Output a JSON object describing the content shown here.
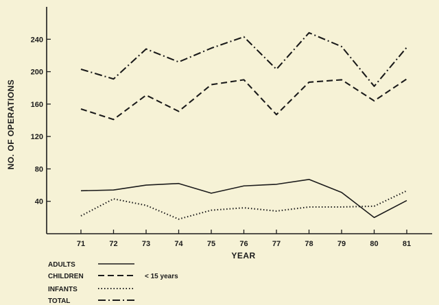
{
  "chart_data": {
    "type": "line",
    "xlabel": "YEAR",
    "ylabel": "NO. OF OPERATIONS",
    "x": [
      "71",
      "72",
      "73",
      "74",
      "75",
      "76",
      "77",
      "78",
      "79",
      "80",
      "81"
    ],
    "xlim": [
      70.3,
      81.7
    ],
    "ylim": [
      0,
      280
    ],
    "yticks": [
      40,
      80,
      120,
      160,
      200,
      240
    ],
    "grid": false,
    "legend_position": "bottom-left",
    "series": [
      {
        "name": "ADULTS",
        "style": "solid",
        "color": "#1b1b1b",
        "values": [
          53,
          54,
          60,
          62,
          50,
          59,
          61,
          67,
          51,
          20,
          41
        ]
      },
      {
        "name": "CHILDREN",
        "style": "dashed",
        "color": "#1b1b1b",
        "values": [
          154,
          141,
          171,
          151,
          184,
          190,
          147,
          187,
          190,
          164,
          191
        ]
      },
      {
        "name": "INFANTS",
        "style": "dotted",
        "color": "#1b1b1b",
        "values": [
          22,
          43,
          35,
          18,
          29,
          32,
          28,
          33,
          33,
          34,
          53
        ]
      },
      {
        "name": "TOTAL",
        "style": "dashdot",
        "color": "#1b1b1b",
        "values": [
          203,
          191,
          228,
          212,
          229,
          243,
          203,
          248,
          231,
          182,
          230
        ]
      }
    ],
    "annotations": [
      {
        "text": "< 15 years"
      }
    ]
  }
}
